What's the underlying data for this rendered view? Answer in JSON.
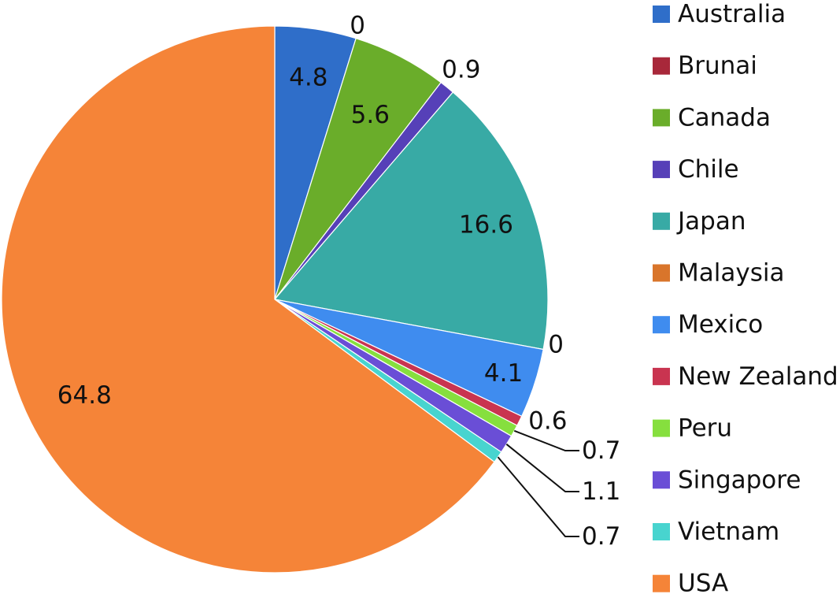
{
  "chart_data": {
    "type": "pie",
    "title": "",
    "legend_position": "right",
    "start_angle_deg": 0,
    "direction": "clockwise",
    "slices": [
      {
        "label": "Australia",
        "value": 4.8,
        "color": "#2f6ec9",
        "value_text": "4.8"
      },
      {
        "label": "Brunai",
        "value": 0,
        "color": "#a8283a",
        "value_text": "0"
      },
      {
        "label": "Canada",
        "value": 5.6,
        "color": "#6aad2a",
        "value_text": "5.6"
      },
      {
        "label": "Chile",
        "value": 0.9,
        "color": "#5640b8",
        "value_text": "0.9"
      },
      {
        "label": "Japan",
        "value": 16.6,
        "color": "#38aaa5",
        "value_text": "16.6"
      },
      {
        "label": "Malaysia",
        "value": 0,
        "color": "#d9752b",
        "value_text": "0"
      },
      {
        "label": "Mexico",
        "value": 4.1,
        "color": "#3f8cef",
        "value_text": "4.1"
      },
      {
        "label": "New Zealand",
        "value": 0.6,
        "color": "#c93450",
        "value_text": "0.6"
      },
      {
        "label": "Peru",
        "value": 0.7,
        "color": "#86df3e",
        "value_text": "0.7"
      },
      {
        "label": "Singapore",
        "value": 1.1,
        "color": "#6a4ed6",
        "value_text": "1.1"
      },
      {
        "label": "Vietnam",
        "value": 0.7,
        "color": "#48d4cf",
        "value_text": "0.7"
      },
      {
        "label": "USA",
        "value": 64.8,
        "color": "#f58438",
        "value_text": "64.8"
      }
    ]
  }
}
